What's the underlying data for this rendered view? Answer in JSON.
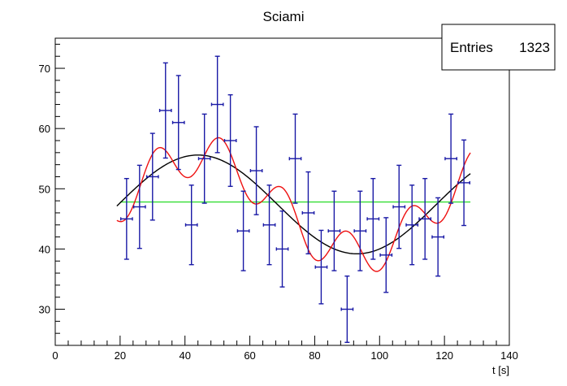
{
  "chart_data": {
    "type": "scatter",
    "title": "Sciami",
    "xlabel": "t [s]",
    "ylabel": "",
    "xlim": [
      0,
      140
    ],
    "ylim": [
      24,
      75
    ],
    "x_ticks": [
      0,
      20,
      40,
      60,
      80,
      100,
      120,
      140
    ],
    "y_ticks": [
      30,
      40,
      50,
      60,
      70
    ],
    "grid": false,
    "stats_box": {
      "label": "Entries",
      "value": "1323"
    },
    "points": [
      {
        "x": 22,
        "y": 45,
        "err": 6.7
      },
      {
        "x": 26,
        "y": 47,
        "err": 6.9
      },
      {
        "x": 30,
        "y": 52,
        "err": 7.2
      },
      {
        "x": 34,
        "y": 63,
        "err": 7.9
      },
      {
        "x": 38,
        "y": 61,
        "err": 7.8
      },
      {
        "x": 42,
        "y": 44,
        "err": 6.6
      },
      {
        "x": 46,
        "y": 55,
        "err": 7.4
      },
      {
        "x": 50,
        "y": 64,
        "err": 8.0
      },
      {
        "x": 54,
        "y": 58,
        "err": 7.6
      },
      {
        "x": 58,
        "y": 43,
        "err": 6.6
      },
      {
        "x": 62,
        "y": 53,
        "err": 7.3
      },
      {
        "x": 66,
        "y": 44,
        "err": 6.6
      },
      {
        "x": 70,
        "y": 40,
        "err": 6.3
      },
      {
        "x": 74,
        "y": 55,
        "err": 7.4
      },
      {
        "x": 78,
        "y": 46,
        "err": 6.8
      },
      {
        "x": 82,
        "y": 37,
        "err": 6.1
      },
      {
        "x": 86,
        "y": 43,
        "err": 6.6
      },
      {
        "x": 90,
        "y": 30,
        "err": 5.5
      },
      {
        "x": 94,
        "y": 43,
        "err": 6.6
      },
      {
        "x": 98,
        "y": 45,
        "err": 6.7
      },
      {
        "x": 102,
        "y": 39,
        "err": 6.2
      },
      {
        "x": 106,
        "y": 47,
        "err": 6.9
      },
      {
        "x": 110,
        "y": 44,
        "err": 6.6
      },
      {
        "x": 114,
        "y": 45,
        "err": 6.7
      },
      {
        "x": 118,
        "y": 42,
        "err": 6.5
      },
      {
        "x": 122,
        "y": 55,
        "err": 7.4
      },
      {
        "x": 126,
        "y": 51,
        "err": 7.1
      }
    ],
    "fits": [
      {
        "color": "#33dd33",
        "x_range": [
          20,
          128
        ],
        "model": "constant",
        "c": 47.8
      },
      {
        "color": "#000000",
        "x_range": [
          19,
          128
        ],
        "model": "sine",
        "a": 47.4,
        "b": 8.2,
        "period": 98,
        "phase_x": 19.5
      },
      {
        "color": "#ee1111",
        "x_range": [
          19,
          128
        ],
        "model": "two-sines",
        "a": 47.4,
        "b": 8.2,
        "period": 98,
        "phase_x": 19.5,
        "b2": 3.6,
        "period2": 19.5,
        "phase2_x": 26.5
      }
    ],
    "colors": {
      "points": "#1a1aa6"
    }
  }
}
